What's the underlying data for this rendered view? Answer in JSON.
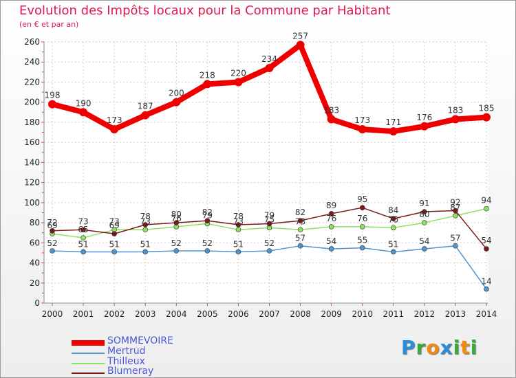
{
  "title": "Evolution des Impôts locaux pour la Commune par Habitant",
  "subtitle": "(en € et par an)",
  "logo": {
    "letters": [
      "P",
      "r",
      "o",
      "x",
      "i",
      "t",
      "i"
    ],
    "colors": [
      "#2a8fd8",
      "#3aaa3a",
      "#f08a10",
      "#2a8fd8",
      "#3aaa3a",
      "#f08a10",
      "#3aaa3a"
    ]
  },
  "chart_data": {
    "type": "line",
    "title": "Evolution des Impôts locaux pour la Commune par Habitant",
    "ylabel": "(en € et par an)",
    "xlabel": "",
    "x": [
      "2000",
      "2001",
      "2002",
      "2003",
      "2004",
      "2005",
      "2006",
      "2007",
      "2008",
      "2009",
      "2010",
      "2011",
      "2012",
      "2013",
      "2014"
    ],
    "ylim": [
      0,
      260
    ],
    "yticks": [
      "0",
      "20",
      "40",
      "60",
      "80",
      "100",
      "120",
      "140",
      "160",
      "180",
      "200",
      "220",
      "240",
      "260"
    ],
    "grid": true,
    "legend_position": "bottom-left",
    "series": [
      {
        "name": "SOMMEVOIRE",
        "color": "#ee0000",
        "values": [
          198,
          190,
          173,
          187,
          200,
          218,
          220,
          234,
          257,
          183,
          173,
          171,
          176,
          183,
          185
        ]
      },
      {
        "name": "Mertrud",
        "color": "#4f94cd",
        "values": [
          52,
          51,
          51,
          51,
          52,
          52,
          51,
          52,
          57,
          54,
          55,
          51,
          54,
          57,
          14
        ]
      },
      {
        "name": "Thilleux",
        "color": "#8fe060",
        "values": [
          69,
          65,
          73,
          73,
          76,
          79,
          73,
          75,
          73,
          76,
          76,
          75,
          80,
          87,
          94
        ]
      },
      {
        "name": "Blumeray",
        "color": "#7a1a1a",
        "values": [
          72,
          73,
          69,
          78,
          80,
          82,
          78,
          79,
          82,
          89,
          95,
          84,
          91,
          92,
          54
        ]
      }
    ]
  }
}
